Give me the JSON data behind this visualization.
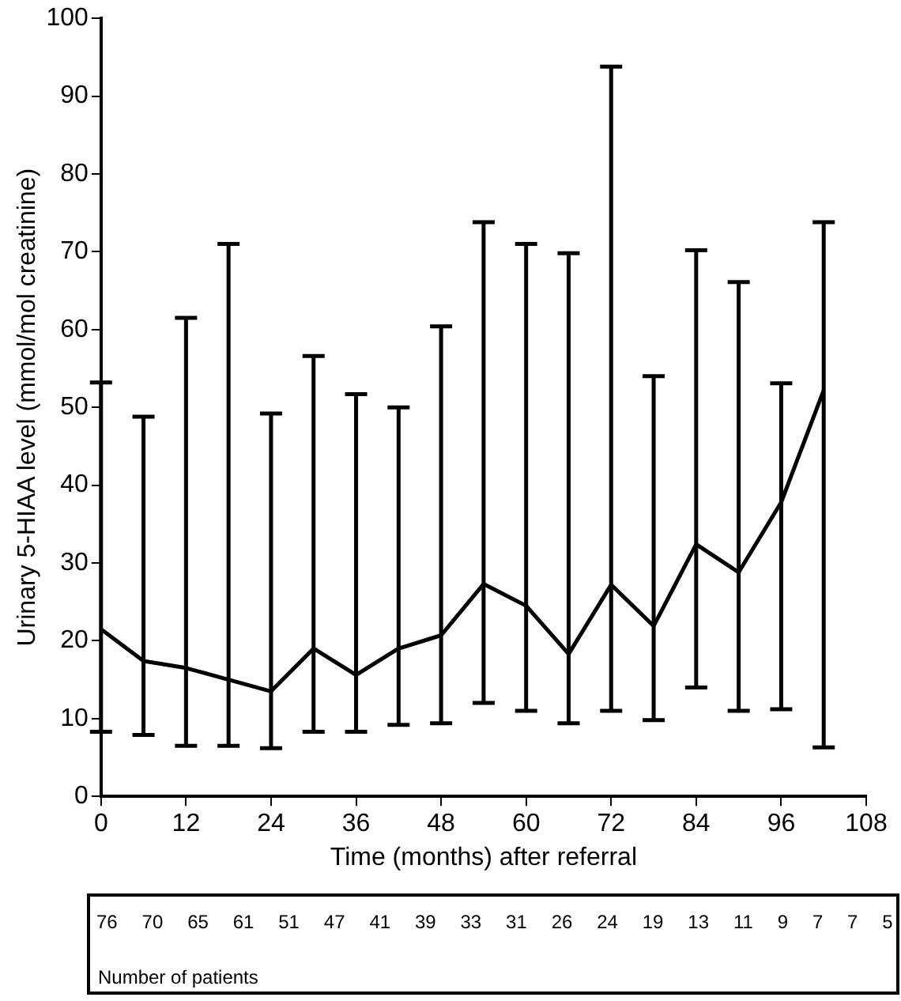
{
  "chart_data": {
    "type": "line",
    "xlabel": "Time (months) after referral",
    "ylabel": "Urinary 5-HIAA level (mmol/mol creatinine)",
    "x": [
      0,
      6,
      12,
      18,
      24,
      30,
      36,
      42,
      48,
      54,
      60,
      66,
      72,
      78,
      84,
      90,
      96,
      102
    ],
    "series": [
      {
        "color": "#000000",
        "values": [
          21.5,
          17.4,
          16.5,
          15,
          13.5,
          19,
          15.6,
          19,
          20.7,
          27.3,
          24.5,
          18.3,
          27.2,
          21.9,
          32.4,
          28.8,
          37.8,
          52.2
        ],
        "errors": [
          [
            8.3,
            53.2
          ],
          [
            7.9,
            48.8
          ],
          [
            6.5,
            61.5
          ],
          [
            6.5,
            71
          ],
          [
            6.2,
            49.2
          ],
          [
            8.3,
            56.6
          ],
          [
            8.3,
            51.7
          ],
          [
            9.2,
            50
          ],
          [
            9.4,
            60.4
          ],
          [
            12,
            73.8
          ],
          [
            11,
            71
          ],
          [
            9.4,
            69.8
          ],
          [
            11,
            93.8
          ],
          [
            9.8,
            54
          ],
          [
            14,
            70.2
          ],
          [
            11,
            66.1
          ],
          [
            11.2,
            53.1
          ],
          [
            6.3,
            73.8
          ]
        ]
      }
    ],
    "xlim": [
      0,
      108
    ],
    "xticks": [
      0,
      12,
      24,
      36,
      48,
      60,
      72,
      84,
      96,
      108
    ],
    "ylim": [
      0,
      100
    ],
    "yticks": [
      0,
      10,
      20,
      30,
      40,
      50,
      60,
      70,
      80,
      90,
      100
    ],
    "grid": false,
    "legend": false,
    "marker": "none",
    "line_style": "solid",
    "annotations": [
      "76",
      "70",
      "65",
      "61",
      "51",
      "47",
      "41",
      "39",
      "33",
      "31",
      "26",
      "24",
      "19",
      "13",
      "11",
      "9",
      "7",
      "7",
      "5",
      "Number of patients"
    ]
  }
}
